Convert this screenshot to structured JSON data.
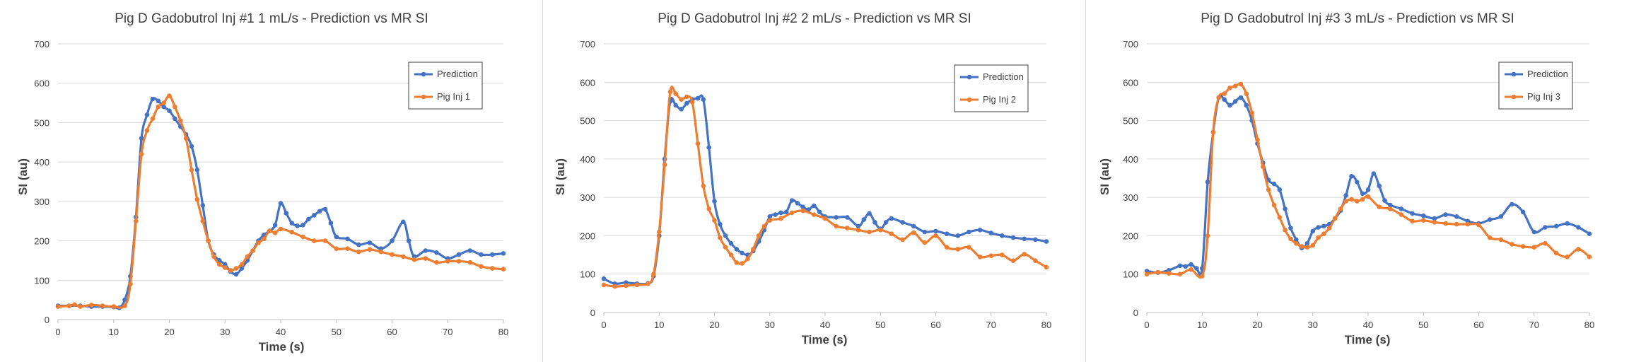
{
  "colors": {
    "prediction": "#4472c4",
    "pig": "#ed7d31",
    "grid": "#d9d9d9",
    "axis": "#bfbfbf",
    "text": "#000000",
    "tick_text": "#404040"
  },
  "chart_data": [
    {
      "type": "line",
      "title": "Pig D Gadobutrol Inj #1 1 mL/s - Prediction  vs MR SI",
      "xlabel": "Time (s)",
      "ylabel": "SI (au)",
      "xlim": [
        0,
        80
      ],
      "ylim": [
        0,
        700
      ],
      "xticks": [
        0,
        10,
        20,
        30,
        40,
        50,
        60,
        70,
        80
      ],
      "yticks": [
        0,
        100,
        200,
        300,
        400,
        500,
        600,
        700
      ],
      "legend_position": "top-right",
      "series": [
        {
          "name": "Prediction",
          "x": [
            0,
            2,
            4,
            6,
            8,
            10,
            11,
            12,
            13,
            14,
            15,
            16,
            17,
            18,
            19,
            20,
            21,
            22,
            23,
            24,
            25,
            26,
            27,
            28,
            29,
            30,
            31,
            32,
            33,
            34,
            35,
            36,
            37,
            38,
            39,
            40,
            41,
            42,
            43,
            44,
            45,
            46,
            47,
            48,
            49,
            50,
            52,
            54,
            56,
            58,
            60,
            62,
            63,
            64,
            66,
            68,
            70,
            72,
            74,
            76,
            78,
            80
          ],
          "y": [
            35,
            35,
            35,
            33,
            33,
            32,
            30,
            50,
            110,
            260,
            460,
            520,
            560,
            555,
            540,
            530,
            510,
            490,
            470,
            440,
            380,
            290,
            200,
            165,
            150,
            140,
            122,
            115,
            130,
            150,
            175,
            200,
            215,
            225,
            240,
            295,
            270,
            245,
            238,
            240,
            255,
            265,
            275,
            280,
            245,
            210,
            205,
            190,
            195,
            180,
            200,
            248,
            200,
            160,
            175,
            170,
            155,
            165,
            175,
            165,
            165,
            168
          ]
        },
        {
          "name": "Pig Inj 1",
          "x": [
            0,
            2,
            3,
            4,
            6,
            8,
            10,
            12,
            13,
            14,
            15,
            16,
            17,
            18,
            19,
            20,
            21,
            22,
            23,
            24,
            25,
            26,
            27,
            28,
            29,
            30,
            31,
            32,
            33,
            34,
            35,
            36,
            37,
            38,
            39,
            40,
            42,
            44,
            46,
            48,
            50,
            52,
            54,
            56,
            58,
            60,
            62,
            64,
            66,
            68,
            70,
            72,
            74,
            76,
            78,
            80
          ],
          "y": [
            33,
            35,
            38,
            33,
            37,
            35,
            33,
            35,
            90,
            250,
            420,
            480,
            510,
            540,
            550,
            568,
            540,
            505,
            460,
            380,
            305,
            250,
            200,
            160,
            140,
            132,
            125,
            130,
            140,
            160,
            175,
            195,
            205,
            225,
            220,
            230,
            222,
            210,
            200,
            200,
            180,
            180,
            172,
            178,
            172,
            165,
            160,
            152,
            155,
            145,
            148,
            148,
            145,
            135,
            130,
            128
          ]
        }
      ]
    },
    {
      "type": "line",
      "title": "Pig D Gadobutrol Inj #2 2 mL/s - Prediction  vs MR SI",
      "xlabel": "Time (s)",
      "ylabel": "SI (au)",
      "xlim": [
        0,
        80
      ],
      "ylim": [
        0,
        700
      ],
      "xticks": [
        0,
        10,
        20,
        30,
        40,
        50,
        60,
        70,
        80
      ],
      "yticks": [
        0,
        100,
        200,
        300,
        400,
        500,
        600,
        700
      ],
      "legend_position": "top-right",
      "series": [
        {
          "name": "Prediction",
          "x": [
            0,
            2,
            4,
            6,
            8,
            9,
            10,
            11,
            12,
            13,
            14,
            15,
            16,
            17,
            18,
            19,
            20,
            21,
            22,
            23,
            24,
            25,
            26,
            27,
            28,
            29,
            30,
            31,
            32,
            33,
            34,
            35,
            36,
            37,
            38,
            39,
            40,
            42,
            44,
            46,
            47,
            48,
            49,
            50,
            51,
            52,
            54,
            56,
            58,
            60,
            62,
            64,
            66,
            68,
            70,
            72,
            74,
            76,
            78,
            80
          ],
          "y": [
            88,
            75,
            78,
            75,
            76,
            95,
            200,
            400,
            550,
            540,
            530,
            545,
            555,
            558,
            555,
            430,
            290,
            230,
            200,
            180,
            165,
            155,
            150,
            160,
            185,
            215,
            250,
            255,
            260,
            262,
            292,
            285,
            275,
            268,
            278,
            262,
            250,
            248,
            248,
            225,
            242,
            258,
            235,
            218,
            235,
            245,
            235,
            225,
            210,
            212,
            205,
            200,
            210,
            215,
            207,
            200,
            195,
            192,
            190,
            185
          ]
        },
        {
          "name": "Pig Inj 2",
          "x": [
            0,
            2,
            4,
            6,
            8,
            9,
            10,
            11,
            12,
            13,
            14,
            15,
            16,
            17,
            18,
            19,
            20,
            21,
            22,
            23,
            24,
            25,
            26,
            27,
            28,
            29,
            30,
            32,
            34,
            36,
            38,
            40,
            42,
            44,
            46,
            48,
            50,
            52,
            54,
            56,
            58,
            60,
            62,
            64,
            66,
            68,
            70,
            72,
            74,
            76,
            78,
            80
          ],
          "y": [
            72,
            68,
            70,
            72,
            75,
            100,
            210,
            385,
            575,
            570,
            555,
            562,
            548,
            440,
            330,
            270,
            240,
            195,
            170,
            150,
            130,
            128,
            140,
            165,
            200,
            225,
            240,
            245,
            260,
            265,
            255,
            245,
            225,
            220,
            215,
            210,
            215,
            205,
            190,
            208,
            182,
            200,
            170,
            165,
            170,
            145,
            148,
            150,
            135,
            152,
            135,
            118
          ]
        }
      ]
    },
    {
      "type": "line",
      "title": "Pig D Gadobutrol Inj #3 3 mL/s - Prediction  vs MR SI",
      "xlabel": "Time (s)",
      "ylabel": "SI (au)",
      "xlim": [
        0,
        80
      ],
      "ylim": [
        0,
        700
      ],
      "xticks": [
        0,
        10,
        20,
        30,
        40,
        50,
        60,
        70,
        80
      ],
      "yticks": [
        0,
        100,
        200,
        300,
        400,
        500,
        600,
        700
      ],
      "legend_position": "top-right",
      "series": [
        {
          "name": "Prediction",
          "x": [
            0,
            2,
            4,
            6,
            7,
            8,
            9,
            10,
            11,
            12,
            13,
            14,
            15,
            16,
            17,
            18,
            19,
            20,
            21,
            22,
            23,
            24,
            25,
            26,
            27,
            28,
            29,
            30,
            31,
            32,
            33,
            34,
            35,
            36,
            37,
            38,
            39,
            40,
            41,
            42,
            43,
            44,
            46,
            48,
            50,
            52,
            54,
            56,
            58,
            60,
            62,
            64,
            66,
            68,
            70,
            72,
            74,
            76,
            78,
            80
          ],
          "y": [
            108,
            104,
            110,
            122,
            120,
            125,
            115,
            115,
            340,
            470,
            560,
            555,
            540,
            550,
            560,
            540,
            500,
            440,
            390,
            345,
            335,
            320,
            270,
            220,
            190,
            168,
            180,
            212,
            222,
            225,
            230,
            245,
            265,
            305,
            355,
            340,
            310,
            320,
            362,
            330,
            292,
            280,
            270,
            258,
            252,
            245,
            255,
            250,
            238,
            232,
            242,
            250,
            282,
            262,
            210,
            222,
            225,
            232,
            222,
            205
          ]
        },
        {
          "name": "Pig Inj 3",
          "x": [
            0,
            2,
            4,
            6,
            8,
            10,
            11,
            12,
            13,
            14,
            15,
            16,
            17,
            18,
            19,
            20,
            21,
            22,
            23,
            24,
            25,
            26,
            27,
            28,
            29,
            30,
            31,
            32,
            33,
            34,
            35,
            36,
            37,
            38,
            39,
            40,
            42,
            44,
            46,
            48,
            50,
            52,
            54,
            56,
            58,
            60,
            62,
            64,
            66,
            68,
            70,
            72,
            74,
            76,
            78,
            80
          ],
          "y": [
            100,
            105,
            102,
            100,
            112,
            95,
            200,
            470,
            560,
            570,
            585,
            590,
            595,
            570,
            520,
            450,
            380,
            320,
            280,
            248,
            215,
            192,
            180,
            172,
            170,
            175,
            195,
            205,
            220,
            245,
            270,
            290,
            295,
            290,
            295,
            302,
            275,
            270,
            255,
            238,
            240,
            235,
            232,
            230,
            230,
            228,
            195,
            190,
            178,
            172,
            170,
            180,
            155,
            145,
            165,
            145
          ]
        }
      ]
    }
  ]
}
